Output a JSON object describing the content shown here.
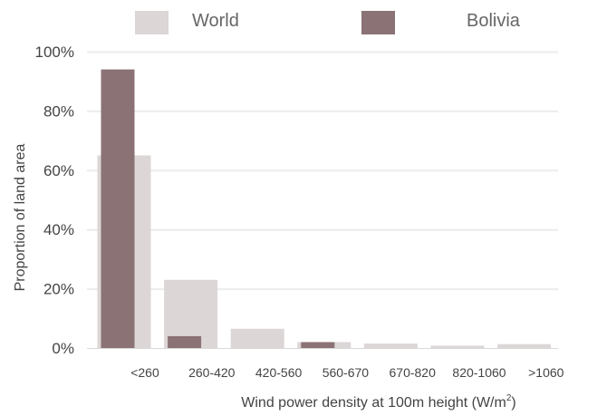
{
  "chart_data": {
    "type": "bar",
    "categories": [
      "<260",
      "260-420",
      "420-560",
      "560-670",
      "670-820",
      "820-1060",
      ">1060"
    ],
    "series": [
      {
        "name": "World",
        "color": "#dcd6d6",
        "values": [
          65,
          23,
          6.5,
          2,
          1.5,
          0.8,
          1.3
        ]
      },
      {
        "name": "Bolivia",
        "color": "#8a7275",
        "values": [
          94,
          4,
          0,
          2,
          0,
          0,
          0
        ]
      }
    ],
    "title": "",
    "xlabel": "Wind power density at 100m height (W/m",
    "xlabel_superscript": "2",
    "xlabel_suffix": ")",
    "ylabel": "Proportion of land area",
    "ylim": [
      0,
      100
    ],
    "yticks": [
      "0%",
      "20%",
      "40%",
      "60%",
      "80%",
      "100%"
    ],
    "grid": true,
    "legend_position": "top"
  }
}
